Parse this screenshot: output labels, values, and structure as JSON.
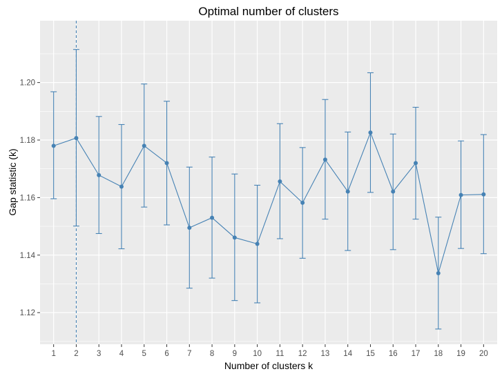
{
  "chart_data": {
    "type": "line",
    "title": "Optimal number of clusters",
    "xlabel": "Number of clusters k",
    "ylabel": "Gap statistic (k)",
    "x": [
      1,
      2,
      3,
      4,
      5,
      6,
      7,
      8,
      9,
      10,
      11,
      12,
      13,
      14,
      15,
      16,
      17,
      18,
      19,
      20
    ],
    "series": [
      {
        "values": [
          1.178,
          1.1807,
          1.1678,
          1.1638,
          1.178,
          1.172,
          1.1495,
          1.153,
          1.1461,
          1.1439,
          1.1656,
          1.1582,
          1.1732,
          1.1621,
          1.1826,
          1.1621,
          1.172,
          1.1337,
          1.1609,
          1.1611
        ],
        "error_lower": [
          1.1596,
          1.1501,
          1.1475,
          1.1422,
          1.1567,
          1.1505,
          1.1285,
          1.132,
          1.1242,
          1.1234,
          1.1457,
          1.1389,
          1.1525,
          1.1416,
          1.1618,
          1.1419,
          1.1525,
          1.1143,
          1.1423,
          1.1405
        ],
        "error_upper": [
          1.1968,
          1.2115,
          1.1882,
          1.1854,
          1.1995,
          1.1935,
          1.1706,
          1.1741,
          1.1682,
          1.1643,
          1.1857,
          1.1774,
          1.1941,
          1.1828,
          1.2034,
          1.1821,
          1.1914,
          1.1532,
          1.1797,
          1.1819
        ],
        "color": "#4682B4"
      }
    ],
    "optimal_k": 2,
    "ylim": [
      1.109,
      1.2215
    ],
    "yticks": [
      1.12,
      1.14,
      1.16,
      1.18,
      1.2
    ],
    "ytick_labels": [
      "1.12",
      "1.14",
      "1.16",
      "1.18",
      "1.20"
    ],
    "xticks": [
      1,
      2,
      3,
      4,
      5,
      6,
      7,
      8,
      9,
      10,
      11,
      12,
      13,
      14,
      15,
      16,
      17,
      18,
      19,
      20
    ],
    "xtick_labels": [
      "1",
      "2",
      "3",
      "4",
      "5",
      "6",
      "7",
      "8",
      "9",
      "10",
      "11",
      "12",
      "13",
      "14",
      "15",
      "16",
      "17",
      "18",
      "19",
      "20"
    ],
    "grid": true,
    "legend": "none",
    "panel_background": "#EBEBEB",
    "gridline_color": "#FFFFFF"
  }
}
